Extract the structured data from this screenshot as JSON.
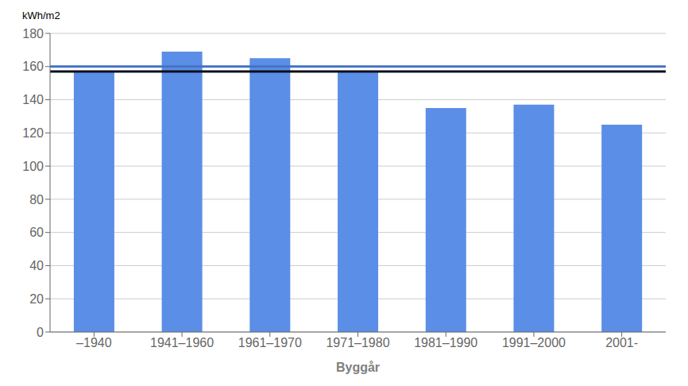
{
  "chart_data": {
    "type": "bar",
    "categories": [
      "–1940",
      "1941–1960",
      "1961–1970",
      "1971–1980",
      "1981–1990",
      "1991–2000",
      "2001-"
    ],
    "values": [
      157,
      169,
      165,
      157,
      135,
      137,
      125
    ],
    "color": "#5B8EE6",
    "xlabel": "Byggår",
    "ylabel": "kWh/m2",
    "ylim": [
      0,
      180
    ],
    "yticks": [
      0,
      20,
      40,
      60,
      80,
      100,
      120,
      140,
      160,
      180
    ],
    "grid": true,
    "reference_lines": [
      {
        "value": 160,
        "color": "#4472C4"
      },
      {
        "value": 157,
        "color": "#0D0D1A"
      }
    ]
  }
}
